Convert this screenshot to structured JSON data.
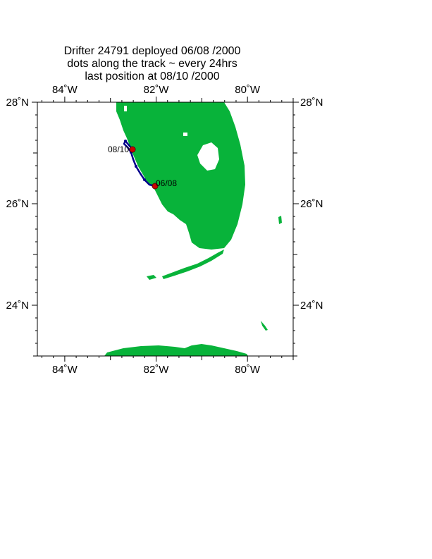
{
  "title": {
    "line1": "Drifter 24791  deployed  06/08 /2000",
    "line2": "dots along the track ~ every 24hrs",
    "line3": "last position at 08/10 /2000"
  },
  "map": {
    "lon_range": [
      -84.6,
      -79.0
    ],
    "lat_range": [
      23.0,
      28.0
    ],
    "lon_ticks": [
      {
        "value": -84,
        "label": "84˚W"
      },
      {
        "value": -82,
        "label": "82˚W"
      },
      {
        "value": -80,
        "label": "80˚W"
      }
    ],
    "lat_ticks": [
      {
        "value": 28,
        "label": "28˚N"
      },
      {
        "value": 26,
        "label": "26˚N"
      },
      {
        "value": 24,
        "label": "24˚N"
      }
    ],
    "land_color": "#08b33a",
    "track_color": "#00008b",
    "marker_color": "#cc0000",
    "deploy_label": "06/08",
    "last_label": "08/10"
  }
}
